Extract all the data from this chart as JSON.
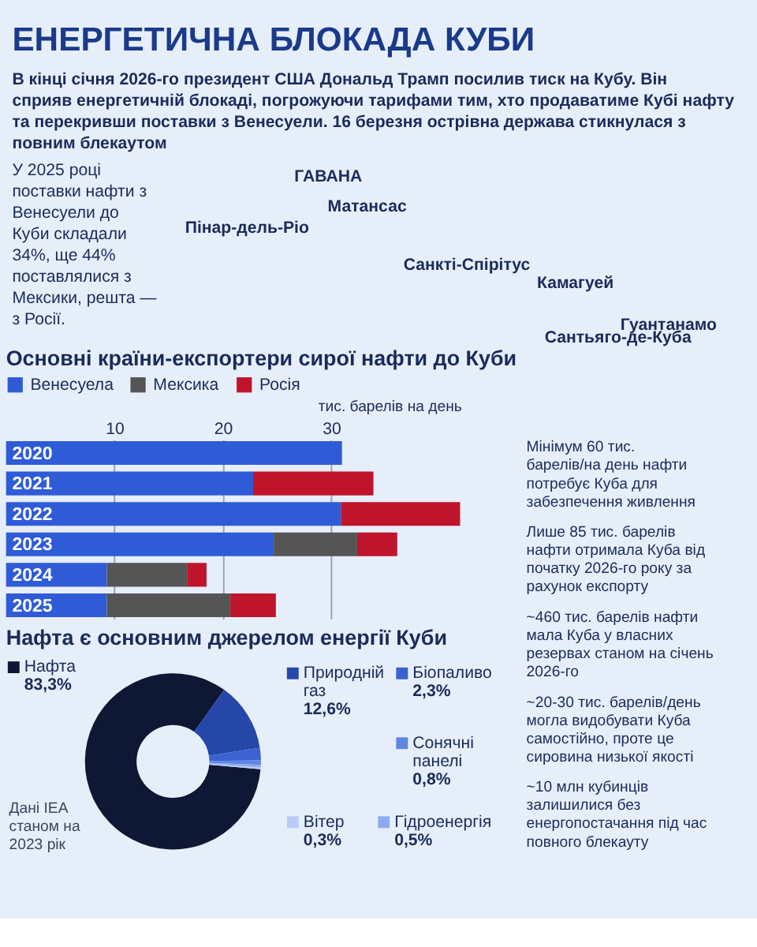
{
  "chart_data": [
    {
      "type": "other",
      "title": "ЕНЕРГЕТИЧНА БЛОКАДА КУБИ",
      "subtitle": "В кінці січня 2026-го президент США Дональд Трамп посилив тиск на Кубу. Він сприяв енергетичній блокаді, погрожуючи тарифами тим, хто продаватиме Кубі нафту та перекривши поставки з Венесуели. 16 березня острівна держава стикнулася з повним блекаутом"
    },
    {
      "type": "other",
      "annotations": [
        "У 2025 році поставки нафти з Венесуели до Куби складали 34%, ще 44% поставлялися з Мексики, решта — з Росії.",
        "ГАВАНА",
        "Матансас",
        "Пінар-дель-Ріо",
        "Санкті-Спірітус",
        "Камагуей",
        "Гуантанамо",
        "Сантьяго-де-Куба"
      ]
    },
    {
      "type": "bar",
      "orientation": "horizontal",
      "stacked": true,
      "title": "Основні країни-експортери сирої нафти до Куби",
      "xlabel": "тис. барелів на день",
      "categories": [
        "2020",
        "2021",
        "2022",
        "2023",
        "2024",
        "2025"
      ],
      "series": [
        {
          "name": "Венесуела",
          "color": "#2f5bd6",
          "values": [
            31,
            22.8,
            30.9,
            24.7,
            9.3,
            9.3
          ]
        },
        {
          "name": "Мексика",
          "color": "#555555",
          "values": [
            null,
            null,
            null,
            7.7,
            7.4,
            11.4
          ]
        },
        {
          "name": "Росія",
          "color": "#c0142c",
          "values": [
            null,
            11.1,
            11,
            3.7,
            1.8,
            4.2
          ]
        }
      ],
      "xlim": [
        0,
        42
      ],
      "xticks": [
        10,
        20,
        30
      ],
      "grid": "x",
      "legend": "top left"
    },
    {
      "type": "donut",
      "title": "Нафта є основним джерелом енергії Куби",
      "categories": [
        "Нафта",
        "Природній газ",
        "Біопаливо",
        "Сонячні панелі",
        "Гідроенергія",
        "Вітер"
      ],
      "values": [
        83.3,
        12.6,
        2.3,
        0.8,
        0.5,
        0.3
      ],
      "value_labels": [
        "83,3%",
        "12,6%",
        "2,3%",
        "0,8%",
        "0,5%",
        "0,3%"
      ],
      "colors": [
        "#0e1733",
        "#2447a8",
        "#3a62d0",
        "#5f86e2",
        "#8eaaf0",
        "#b9cbf5"
      ],
      "annotations": [
        "Дані IEA станом на 2023 рік"
      ],
      "legend": "right"
    },
    {
      "type": "other",
      "annotations": [
        "Мінімум 60 тис. барелів/на день нафти потребує Куба для забезпечення живлення",
        "Лише 85 тис. барелів нафти отримала Куба від початку 2026-го року за рахунок експорту",
        "~460 тис. барелів нафти мала Куба у власних резервах станом на січень 2026-го",
        "~20-30 тис. барелів/день могла видобувати Куба самостійно, проте це сировина низької якості",
        "~10 млн кубинців залишилися без енергопостачання під час повного блекауту"
      ]
    }
  ]
}
